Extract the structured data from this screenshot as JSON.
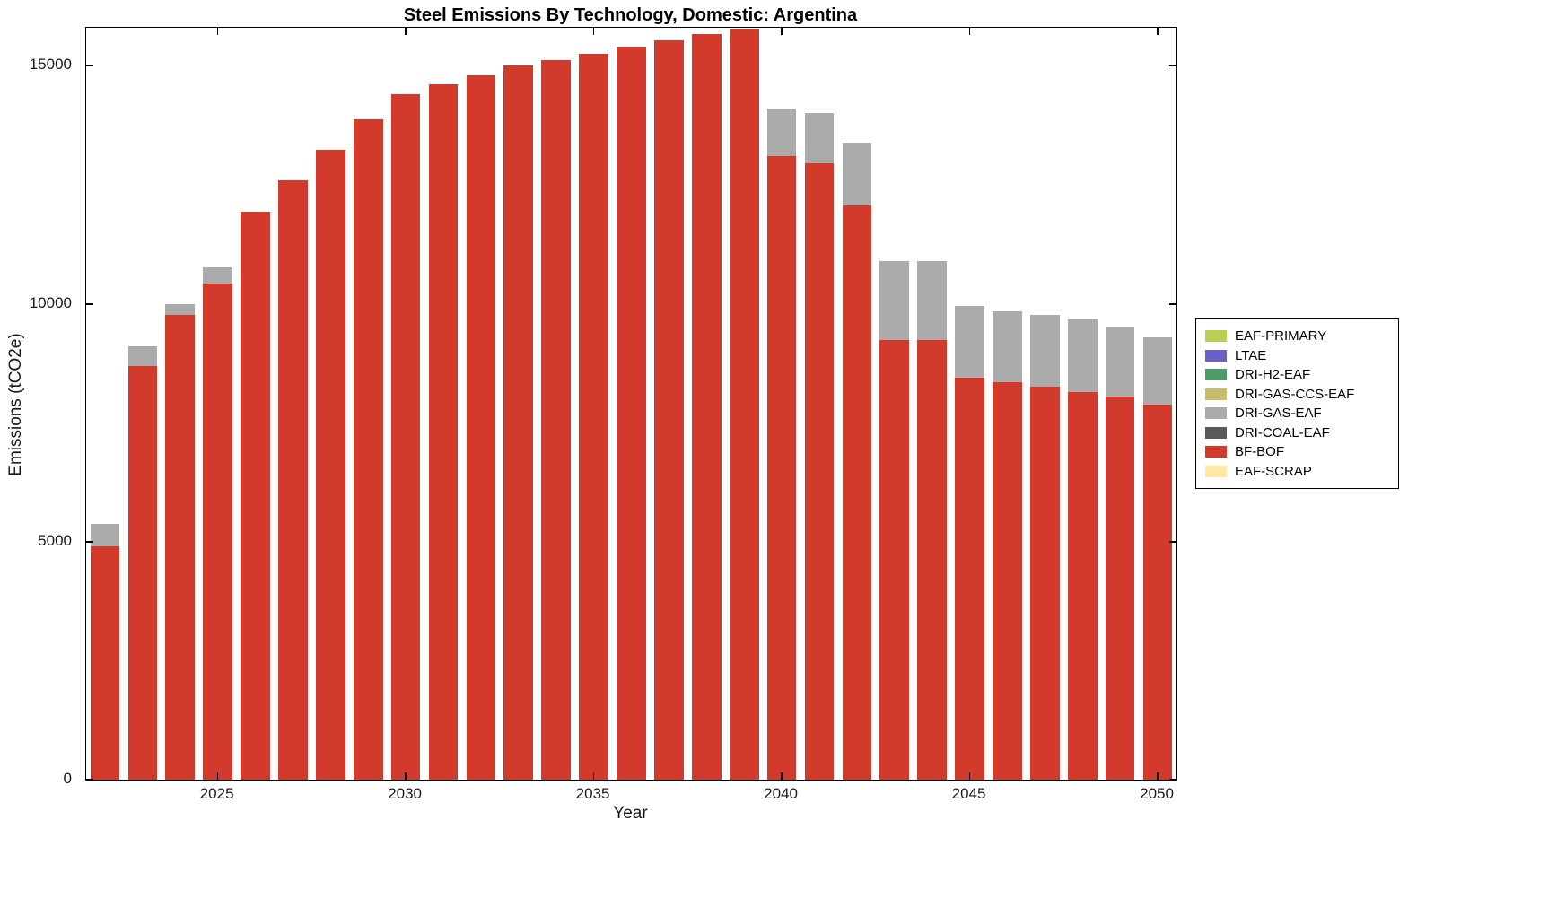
{
  "figure": {
    "title": "Steel Emissions By Technology, Domestic: Argentina",
    "xlabel": "Year",
    "ylabel": "Emissions (tCO2e)"
  },
  "chart_data": {
    "type": "bar",
    "stacked": true,
    "title": "Steel Emissions By Technology, Domestic: Argentina",
    "xlabel": "Year",
    "ylabel": "Emissions (tCO2e)",
    "ylim": [
      0,
      15800
    ],
    "yticks": [
      0,
      5000,
      10000,
      15000
    ],
    "xticks": [
      2025,
      2030,
      2035,
      2040,
      2045,
      2050
    ],
    "grid": false,
    "legend_position": "right-outside",
    "x": [
      2022,
      2023,
      2024,
      2025,
      2026,
      2027,
      2028,
      2029,
      2030,
      2031,
      2032,
      2033,
      2034,
      2035,
      2036,
      2037,
      2038,
      2039,
      2040,
      2041,
      2042,
      2043,
      2044,
      2045,
      2046,
      2047,
      2048,
      2049,
      2050
    ],
    "series": [
      {
        "name": "BF-BOF",
        "color": "#d23b2b",
        "values": [
          4900,
          8690,
          9760,
          10430,
          11930,
          12590,
          13240,
          13880,
          14410,
          14620,
          14810,
          15000,
          15130,
          15260,
          15410,
          15540,
          15660,
          15790,
          13110,
          12960,
          12060,
          9230,
          9230,
          8440,
          8350,
          8250,
          8150,
          8060,
          7880
        ]
      },
      {
        "name": "DRI-GAS-EAF",
        "color": "#ababab",
        "values": [
          470,
          410,
          240,
          330,
          0,
          0,
          0,
          0,
          0,
          0,
          0,
          0,
          0,
          0,
          0,
          0,
          0,
          0,
          1000,
          1040,
          1330,
          1660,
          1660,
          1510,
          1500,
          1510,
          1515,
          1455,
          1410
        ]
      }
    ],
    "legend_entries": [
      {
        "label": "EAF-PRIMARY",
        "color": "#b9cf52"
      },
      {
        "label": "LTAE",
        "color": "#6a60c8"
      },
      {
        "label": "DRI-H2-EAF",
        "color": "#4f9b68"
      },
      {
        "label": "DRI-GAS-CCS-EAF",
        "color": "#c6bc6b"
      },
      {
        "label": "DRI-GAS-EAF",
        "color": "#ababab"
      },
      {
        "label": "DRI-COAL-EAF",
        "color": "#595959"
      },
      {
        "label": "BF-BOF",
        "color": "#d23b2b"
      },
      {
        "label": "EAF-SCRAP",
        "color": "#ffe9a3"
      }
    ]
  }
}
